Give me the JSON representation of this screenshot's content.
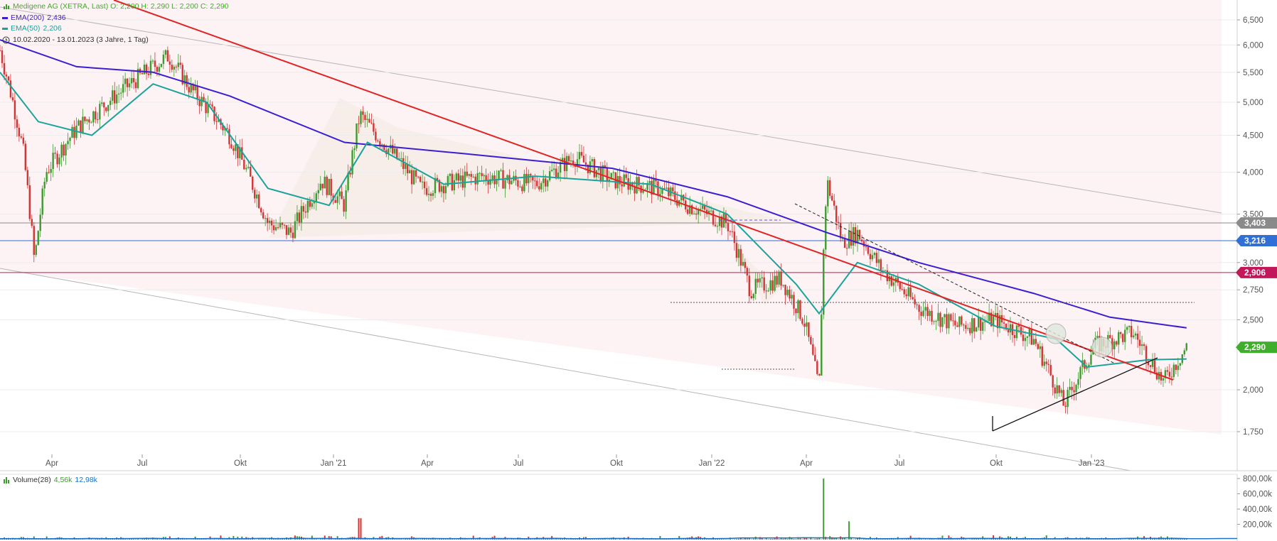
{
  "header": {
    "title_line": "Medigene AG (XETRA, Last)  O: 2,200  H: 2,290  L: 2,200  C: 2,290",
    "ema200_label": "EMA(200)",
    "ema200_value": "2,436",
    "ema50_label": "EMA(50)",
    "ema50_value": "2,206",
    "range_label": "10.02.2020 - 13.01.2023  (3 Jahre, 1 Tag)",
    "volume_label": "Volume(28)",
    "volume_value1": "4,56k",
    "volume_value2": "12,98k"
  },
  "colors": {
    "up": "#3d9b2f",
    "down": "#d33535",
    "ema200": "#3a1fd1",
    "ema50": "#1aa39a",
    "trend": "#e02424",
    "level_3403": "#8a8a8a",
    "level_3216": "#2f6fd6",
    "level_2906": "#c2185b",
    "last_price": "#3fae2a"
  },
  "chart_data": {
    "type": "candlestick",
    "x_range": [
      "10.02.2020",
      "13.01.2023"
    ],
    "x_ticks": [
      "Apr",
      "Jul",
      "Okt",
      "Jan '21",
      "Apr",
      "Jul",
      "Okt",
      "Jan '22",
      "Apr",
      "Jul",
      "Okt",
      "Jan '23"
    ],
    "y_ticks": [
      "6,500",
      "6,000",
      "5,500",
      "5,000",
      "4,500",
      "4,000",
      "3,500",
      "3,000",
      "2,750",
      "2,500",
      "2,000",
      "1,750"
    ],
    "y_scale": "log",
    "price_labels": [
      "3,403",
      "3,216",
      "2,906",
      "2,290"
    ],
    "horizontal_levels": [
      3.403,
      3.216,
      2.906
    ],
    "last_close": 2.29,
    "ohlc_last": {
      "open": 2.2,
      "high": 2.29,
      "low": 2.2,
      "close": 2.29
    },
    "ema200_last": 2.436,
    "ema50_last": 2.206,
    "price_path": [
      {
        "x": 0.0,
        "y": 5.9
      },
      {
        "x": 0.03,
        "y": 4.3
      },
      {
        "x": 0.045,
        "y": 3.0
      },
      {
        "x": 0.06,
        "y": 4.0
      },
      {
        "x": 0.1,
        "y": 4.6
      },
      {
        "x": 0.16,
        "y": 5.2
      },
      {
        "x": 0.22,
        "y": 5.8
      },
      {
        "x": 0.25,
        "y": 5.2
      },
      {
        "x": 0.3,
        "y": 4.5
      },
      {
        "x": 0.35,
        "y": 3.4
      },
      {
        "x": 0.38,
        "y": 3.3
      },
      {
        "x": 0.42,
        "y": 3.9
      },
      {
        "x": 0.45,
        "y": 3.6
      },
      {
        "x": 0.47,
        "y": 4.8
      },
      {
        "x": 0.5,
        "y": 4.4
      },
      {
        "x": 0.55,
        "y": 3.8
      },
      {
        "x": 0.63,
        "y": 3.95
      },
      {
        "x": 0.7,
        "y": 3.85
      },
      {
        "x": 0.75,
        "y": 4.2
      },
      {
        "x": 0.8,
        "y": 3.9
      },
      {
        "x": 0.86,
        "y": 3.8
      },
      {
        "x": 0.9,
        "y": 3.6
      },
      {
        "x": 0.95,
        "y": 3.4
      },
      {
        "x": 0.98,
        "y": 2.75
      },
      {
        "x": 1.02,
        "y": 2.85
      },
      {
        "x": 1.05,
        "y": 2.5
      },
      {
        "x": 1.07,
        "y": 2.0
      },
      {
        "x": 1.08,
        "y": 3.9
      },
      {
        "x": 1.1,
        "y": 3.2
      },
      {
        "x": 1.12,
        "y": 3.3
      },
      {
        "x": 1.15,
        "y": 2.95
      },
      {
        "x": 1.2,
        "y": 2.6
      },
      {
        "x": 1.25,
        "y": 2.45
      },
      {
        "x": 1.3,
        "y": 2.5
      },
      {
        "x": 1.35,
        "y": 2.35
      },
      {
        "x": 1.39,
        "y": 1.9
      },
      {
        "x": 1.43,
        "y": 2.3
      },
      {
        "x": 1.48,
        "y": 2.4
      },
      {
        "x": 1.52,
        "y": 2.05
      },
      {
        "x": 1.55,
        "y": 2.29
      }
    ],
    "ema200_path": [
      {
        "x": 0.0,
        "y": 6.1
      },
      {
        "x": 0.1,
        "y": 5.6
      },
      {
        "x": 0.2,
        "y": 5.5
      },
      {
        "x": 0.3,
        "y": 5.1
      },
      {
        "x": 0.45,
        "y": 4.4
      },
      {
        "x": 0.6,
        "y": 4.25
      },
      {
        "x": 0.8,
        "y": 4.05
      },
      {
        "x": 0.95,
        "y": 3.7
      },
      {
        "x": 1.08,
        "y": 3.3
      },
      {
        "x": 1.2,
        "y": 3.0
      },
      {
        "x": 1.35,
        "y": 2.72
      },
      {
        "x": 1.45,
        "y": 2.52
      },
      {
        "x": 1.55,
        "y": 2.436
      }
    ],
    "ema50_path": [
      {
        "x": 0.0,
        "y": 5.5
      },
      {
        "x": 0.05,
        "y": 4.7
      },
      {
        "x": 0.12,
        "y": 4.5
      },
      {
        "x": 0.2,
        "y": 5.3
      },
      {
        "x": 0.27,
        "y": 5.0
      },
      {
        "x": 0.35,
        "y": 3.8
      },
      {
        "x": 0.43,
        "y": 3.6
      },
      {
        "x": 0.48,
        "y": 4.4
      },
      {
        "x": 0.58,
        "y": 3.85
      },
      {
        "x": 0.7,
        "y": 3.95
      },
      {
        "x": 0.85,
        "y": 3.85
      },
      {
        "x": 0.95,
        "y": 3.5
      },
      {
        "x": 1.04,
        "y": 2.8
      },
      {
        "x": 1.07,
        "y": 2.55
      },
      {
        "x": 1.12,
        "y": 3.0
      },
      {
        "x": 1.2,
        "y": 2.8
      },
      {
        "x": 1.3,
        "y": 2.45
      },
      {
        "x": 1.38,
        "y": 2.35
      },
      {
        "x": 1.42,
        "y": 2.15
      },
      {
        "x": 1.5,
        "y": 2.2
      },
      {
        "x": 1.55,
        "y": 2.206
      }
    ],
    "volume": {
      "y_ticks": [
        "800,00k",
        "600,00k",
        "400,00k",
        "200,00k"
      ],
      "spikes": [
        {
          "x": 0.47,
          "v": 280
        },
        {
          "x": 1.075,
          "v": 800
        },
        {
          "x": 1.11,
          "v": 240
        }
      ]
    }
  }
}
